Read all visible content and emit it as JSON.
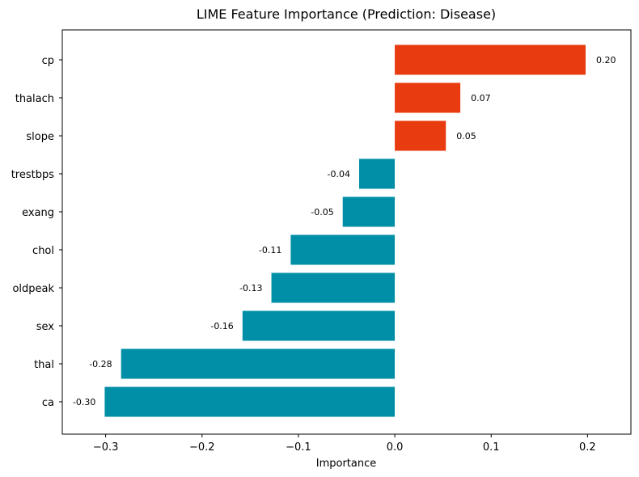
{
  "chart_data": {
    "type": "bar",
    "orientation": "horizontal",
    "title": "LIME Feature Importance (Prediction: Disease)",
    "xlabel": "Importance",
    "ylabel": "",
    "xlim": [
      -0.345,
      0.245
    ],
    "xticks": [
      -0.3,
      -0.2,
      -0.1,
      0.0,
      0.1,
      0.2
    ],
    "xtick_labels": [
      "−0.3",
      "−0.2",
      "−0.1",
      "0.0",
      "0.1",
      "0.2"
    ],
    "grid": false,
    "categories": [
      "cp",
      "thalach",
      "slope",
      "trestbps",
      "exang",
      "chol",
      "oldpeak",
      "sex",
      "thal",
      "ca"
    ],
    "values": [
      0.198,
      0.068,
      0.053,
      -0.037,
      -0.054,
      -0.108,
      -0.128,
      -0.158,
      -0.284,
      -0.301
    ],
    "value_labels": [
      "0.20",
      "0.07",
      "0.05",
      "-0.04",
      "-0.05",
      "-0.11",
      "-0.13",
      "-0.16",
      "-0.28",
      "-0.30"
    ],
    "colors": {
      "positive": "#e83b10",
      "negative": "#008fa6"
    }
  }
}
